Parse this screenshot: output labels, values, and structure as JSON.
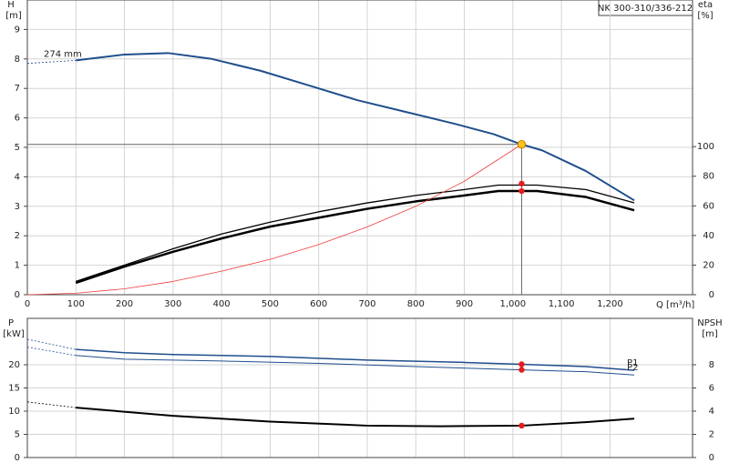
{
  "chart_data": [
    {
      "type": "line",
      "title": "NK 300-310/336-212",
      "y_label": "H",
      "y_unit": "[m]",
      "y2_label": "eta",
      "y2_unit": "[%]",
      "x_label": "Q [m³/h]",
      "xlim": [
        0,
        1370
      ],
      "xticks": [
        0,
        100,
        200,
        300,
        400,
        500,
        600,
        700,
        800,
        900,
        {
          "value": 1000,
          "label": "1,000"
        },
        {
          "value": 1100,
          "label": "1,100"
        },
        {
          "value": 1200,
          "label": "1,200"
        }
      ],
      "ylim": [
        0,
        10
      ],
      "yticks": [
        0,
        1,
        2,
        3,
        4,
        5,
        6,
        7,
        8,
        9
      ],
      "y2lim": [
        0,
        199
      ],
      "y2ticks": [
        0,
        20,
        40,
        60,
        80,
        100
      ],
      "grid": true,
      "duty_point": {
        "x": 1018,
        "y": 5.1
      },
      "series": [
        {
          "color": "#1f4e8c",
          "width": 2,
          "dashed_lead": true,
          "label": "274 mm",
          "x": [
            0,
            100,
            200,
            290,
            380,
            480,
            580,
            680,
            780,
            880,
            960,
            1018,
            1060,
            1150,
            1250
          ],
          "values": [
            7.85,
            7.95,
            8.15,
            8.2,
            8.0,
            7.6,
            7.1,
            6.6,
            6.2,
            5.8,
            5.45,
            5.1,
            4.9,
            4.2,
            3.2
          ]
        },
        {
          "color": "#000000",
          "width": 1.3,
          "axis": "y2",
          "marker": {
            "x": 1018,
            "value": 75
          },
          "x": [
            100,
            200,
            300,
            400,
            500,
            600,
            700,
            800,
            900,
            970,
            1050,
            1150,
            1250
          ],
          "values": [
            9,
            20,
            31,
            41,
            49,
            56,
            62,
            67,
            71,
            74,
            74,
            71,
            62
          ]
        },
        {
          "color": "#000000",
          "width": 2.5,
          "axis": "y2",
          "marker": {
            "x": 1018,
            "value": 70
          },
          "x": [
            100,
            200,
            300,
            400,
            500,
            600,
            700,
            800,
            900,
            970,
            1050,
            1150,
            1250
          ],
          "values": [
            8,
            19,
            29,
            38,
            46,
            52,
            58,
            63,
            67,
            70,
            70,
            66,
            57
          ]
        },
        {
          "color": "#f03c3c",
          "width": 0.8,
          "x": [
            0,
            100,
            200,
            300,
            400,
            500,
            600,
            700,
            800,
            900,
            1018
          ],
          "values": [
            0,
            0.05,
            0.2,
            0.45,
            0.8,
            1.2,
            1.7,
            2.3,
            3.0,
            3.85,
            5.1
          ]
        }
      ]
    },
    {
      "type": "line",
      "y_label": "P",
      "y_unit": "[kW]",
      "y2_label": "NPSH",
      "y2_unit": "[m]",
      "xlim": [
        0,
        1370
      ],
      "xticks": [
        0,
        100,
        200,
        300,
        400,
        500,
        600,
        700,
        800,
        900,
        1000,
        1100,
        1200
      ],
      "xtick_labels": false,
      "ylim": [
        0,
        30
      ],
      "yticks": [
        0,
        5,
        10,
        15,
        20
      ],
      "y2lim": [
        0,
        12
      ],
      "y2ticks": [
        0,
        2,
        4,
        6,
        8
      ],
      "grid": true,
      "series": [
        {
          "color": "#1f4e8c",
          "width": 1.5,
          "dashed_lead": true,
          "label": "P1",
          "marker": {
            "x": 1018,
            "value": 20.1
          },
          "x": [
            0,
            100,
            200,
            300,
            500,
            700,
            900,
            1018,
            1150,
            1250
          ],
          "values": [
            25.5,
            23.3,
            22.6,
            22.2,
            21.8,
            21.0,
            20.5,
            20.1,
            19.6,
            18.8
          ]
        },
        {
          "color": "#1f4e8c",
          "width": 1,
          "dashed_lead": true,
          "label": "P2",
          "marker": {
            "x": 1018,
            "value": 18.9
          },
          "x": [
            0,
            100,
            200,
            400,
            600,
            800,
            1018,
            1150,
            1250
          ],
          "values": [
            23.8,
            22.0,
            21.2,
            20.8,
            20.3,
            19.6,
            18.9,
            18.5,
            17.8
          ]
        },
        {
          "color": "#000000",
          "width": 2,
          "axis": "y2",
          "dashed_lead": true,
          "marker": {
            "x": 1018,
            "value": 2.75
          },
          "x": [
            0,
            100,
            300,
            500,
            700,
            850,
            1018,
            1150,
            1250
          ],
          "values": [
            4.8,
            4.3,
            3.6,
            3.1,
            2.75,
            2.7,
            2.75,
            3.05,
            3.35
          ]
        }
      ]
    }
  ]
}
